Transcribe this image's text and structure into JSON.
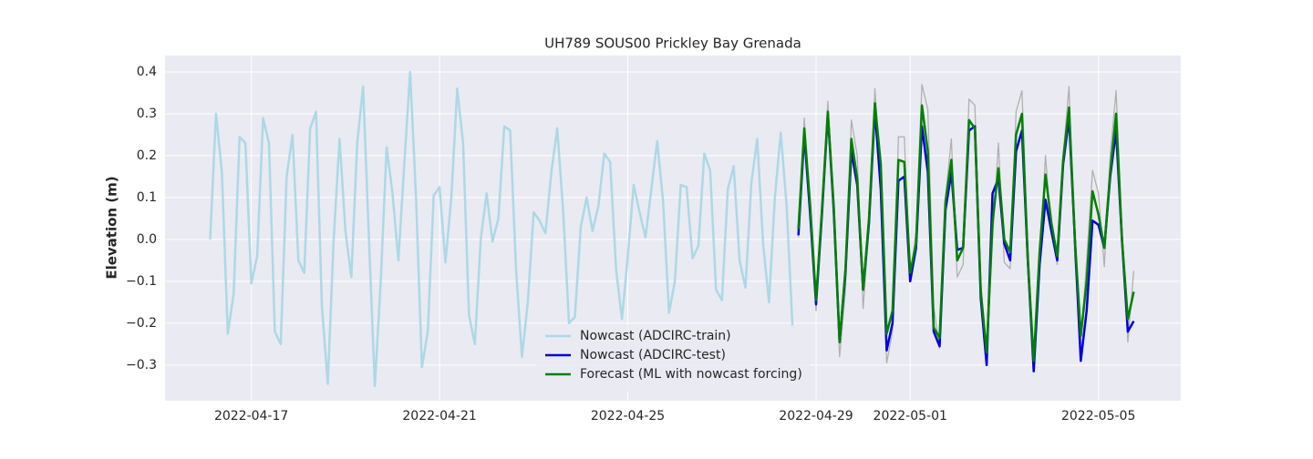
{
  "chart_data": {
    "type": "line",
    "title": "UH789 SOUS00 Prickley Bay Grenada",
    "y_label": "Elevation (m)",
    "xlim": [
      "2022-04-15 04:00",
      "2022-05-06 18:00"
    ],
    "xticks": [
      "2022-04-17",
      "2022-04-21",
      "2022-04-25",
      "2022-04-29",
      "2022-05-01",
      "2022-05-05"
    ],
    "ylim": [
      -0.385,
      0.439
    ],
    "yticks": [
      {
        "value": -0.3,
        "label": "−0.3"
      },
      {
        "value": -0.2,
        "label": "−0.2"
      },
      {
        "value": -0.1,
        "label": "−0.1"
      },
      {
        "value": 0,
        "label": "0.0"
      },
      0.1,
      0.2,
      0.3,
      0.4
    ],
    "grid": true,
    "legend": "lower center",
    "series": [
      {
        "name": "Nowcast (ADCIRC-train)",
        "color": "#add8e6",
        "x": [
          "2022-04-16 03:00",
          "2022-04-16 06:00",
          "2022-04-16 09:00",
          "2022-04-16 12:00",
          "2022-04-16 15:00",
          "2022-04-16 18:00",
          "2022-04-16 21:00",
          "2022-04-17 00:00",
          "2022-04-17 03:00",
          "2022-04-17 06:00",
          "2022-04-17 09:00",
          "2022-04-17 12:00",
          "2022-04-17 15:00",
          "2022-04-17 18:00",
          "2022-04-17 21:00",
          "2022-04-18 00:00",
          "2022-04-18 03:00",
          "2022-04-18 06:00",
          "2022-04-18 09:00",
          "2022-04-18 12:00",
          "2022-04-18 15:00",
          "2022-04-18 18:00",
          "2022-04-18 21:00",
          "2022-04-19 00:00",
          "2022-04-19 03:00",
          "2022-04-19 06:00",
          "2022-04-19 09:00",
          "2022-04-19 12:00",
          "2022-04-19 15:00",
          "2022-04-19 18:00",
          "2022-04-19 21:00",
          "2022-04-20 00:00",
          "2022-04-20 03:00",
          "2022-04-20 06:00",
          "2022-04-20 09:00",
          "2022-04-20 12:00",
          "2022-04-20 15:00",
          "2022-04-20 18:00",
          "2022-04-20 21:00",
          "2022-04-21 00:00",
          "2022-04-21 03:00",
          "2022-04-21 06:00",
          "2022-04-21 09:00",
          "2022-04-21 12:00",
          "2022-04-21 15:00",
          "2022-04-21 18:00",
          "2022-04-21 21:00",
          "2022-04-22 00:00",
          "2022-04-22 03:00",
          "2022-04-22 06:00",
          "2022-04-22 09:00",
          "2022-04-22 12:00",
          "2022-04-22 15:00",
          "2022-04-22 18:00",
          "2022-04-22 21:00",
          "2022-04-23 00:00",
          "2022-04-23 03:00",
          "2022-04-23 06:00",
          "2022-04-23 09:00",
          "2022-04-23 12:00",
          "2022-04-23 15:00",
          "2022-04-23 18:00",
          "2022-04-23 21:00",
          "2022-04-24 00:00",
          "2022-04-24 03:00",
          "2022-04-24 06:00",
          "2022-04-24 09:00",
          "2022-04-24 12:00",
          "2022-04-24 15:00",
          "2022-04-24 18:00",
          "2022-04-24 21:00",
          "2022-04-25 00:00",
          "2022-04-25 03:00",
          "2022-04-25 06:00",
          "2022-04-25 09:00",
          "2022-04-25 12:00",
          "2022-04-25 15:00",
          "2022-04-25 18:00",
          "2022-04-25 21:00",
          "2022-04-26 00:00",
          "2022-04-26 03:00",
          "2022-04-26 06:00",
          "2022-04-26 09:00",
          "2022-04-26 12:00",
          "2022-04-26 15:00",
          "2022-04-26 18:00",
          "2022-04-26 21:00",
          "2022-04-27 00:00",
          "2022-04-27 03:00",
          "2022-04-27 06:00",
          "2022-04-27 09:00",
          "2022-04-27 12:00",
          "2022-04-27 15:00",
          "2022-04-27 18:00",
          "2022-04-27 21:00",
          "2022-04-28 00:00",
          "2022-04-28 03:00",
          "2022-04-28 06:00",
          "2022-04-28 09:00",
          "2022-04-28 12:00"
        ],
        "values": [
          0.0,
          0.3,
          0.16,
          -0.225,
          -0.13,
          0.245,
          0.23,
          -0.105,
          -0.04,
          0.29,
          0.23,
          -0.22,
          -0.25,
          0.15,
          0.25,
          -0.05,
          -0.08,
          0.265,
          0.305,
          -0.16,
          -0.345,
          0.0,
          0.24,
          0.02,
          -0.09,
          0.23,
          0.365,
          0.0,
          -0.35,
          -0.1,
          0.22,
          0.11,
          -0.05,
          0.18,
          0.4,
          0.1,
          -0.305,
          -0.22,
          0.105,
          0.125,
          -0.055,
          0.1,
          0.36,
          0.23,
          -0.18,
          -0.25,
          0.0,
          0.11,
          -0.005,
          0.05,
          0.27,
          0.26,
          -0.07,
          -0.28,
          -0.15,
          0.065,
          0.045,
          0.015,
          0.16,
          0.265,
          0.07,
          -0.2,
          -0.185,
          0.03,
          0.1,
          0.02,
          0.08,
          0.205,
          0.185,
          -0.07,
          -0.19,
          -0.04,
          0.13,
          0.065,
          0.005,
          0.12,
          0.235,
          0.09,
          -0.175,
          -0.1,
          0.13,
          0.125,
          -0.045,
          -0.015,
          0.205,
          0.165,
          -0.12,
          -0.145,
          0.12,
          0.175,
          -0.05,
          -0.115,
          0.135,
          0.24,
          -0.01,
          -0.15,
          0.1,
          0.255,
          0.08,
          -0.21
        ]
      },
      {
        "color": "#b0b0b0",
        "x": [
          "2022-04-28 15:00",
          "2022-04-28 18:00",
          "2022-04-28 21:00",
          "2022-04-29 00:00",
          "2022-04-29 03:00",
          "2022-04-29 06:00",
          "2022-04-29 09:00",
          "2022-04-29 12:00",
          "2022-04-29 15:00",
          "2022-04-29 18:00",
          "2022-04-29 21:00",
          "2022-04-30 00:00",
          "2022-04-30 03:00",
          "2022-04-30 06:00",
          "2022-04-30 09:00",
          "2022-04-30 12:00",
          "2022-04-30 15:00",
          "2022-04-30 18:00",
          "2022-04-30 21:00",
          "2022-05-01 00:00",
          "2022-05-01 03:00",
          "2022-05-01 06:00",
          "2022-05-01 09:00",
          "2022-05-01 12:00",
          "2022-05-01 15:00",
          "2022-05-01 18:00",
          "2022-05-01 21:00",
          "2022-05-02 00:00",
          "2022-05-02 03:00",
          "2022-05-02 06:00",
          "2022-05-02 09:00",
          "2022-05-02 12:00",
          "2022-05-02 15:00",
          "2022-05-02 18:00",
          "2022-05-02 21:00",
          "2022-05-03 00:00",
          "2022-05-03 03:00",
          "2022-05-03 06:00",
          "2022-05-03 09:00",
          "2022-05-03 12:00",
          "2022-05-03 15:00",
          "2022-05-03 18:00",
          "2022-05-03 21:00",
          "2022-05-04 00:00",
          "2022-05-04 03:00",
          "2022-05-04 06:00",
          "2022-05-04 09:00",
          "2022-05-04 12:00",
          "2022-05-04 15:00",
          "2022-05-04 18:00",
          "2022-05-04 21:00",
          "2022-05-05 00:00",
          "2022-05-05 03:00",
          "2022-05-05 06:00",
          "2022-05-05 09:00",
          "2022-05-05 12:00",
          "2022-05-05 15:00",
          "2022-05-05 18:00"
        ],
        "values": [
          0.005,
          0.29,
          0.06,
          -0.17,
          0.05,
          0.33,
          0.05,
          -0.28,
          -0.12,
          0.285,
          0.2,
          -0.165,
          0.03,
          0.36,
          0.16,
          -0.295,
          -0.22,
          0.245,
          0.245,
          -0.09,
          0.02,
          0.37,
          0.31,
          -0.16,
          -0.26,
          0.1,
          0.24,
          -0.09,
          -0.06,
          0.335,
          0.32,
          -0.1,
          -0.28,
          0.0,
          0.23,
          -0.055,
          -0.07,
          0.305,
          0.355,
          -0.01,
          -0.29,
          -0.06,
          0.2,
          0.02,
          -0.06,
          0.2,
          0.365,
          -0.05,
          -0.25,
          -0.05,
          0.165,
          0.11,
          -0.065,
          0.2,
          0.355,
          0.03,
          -0.245,
          -0.075
        ]
      },
      {
        "name": "Nowcast (ADCIRC-test)",
        "color": "#0000dd",
        "x": [
          "2022-04-28 15:00",
          "2022-04-28 18:00",
          "2022-04-28 21:00",
          "2022-04-29 00:00",
          "2022-04-29 03:00",
          "2022-04-29 06:00",
          "2022-04-29 09:00",
          "2022-04-29 12:00",
          "2022-04-29 15:00",
          "2022-04-29 18:00",
          "2022-04-29 21:00",
          "2022-04-30 00:00",
          "2022-04-30 03:00",
          "2022-04-30 06:00",
          "2022-04-30 09:00",
          "2022-04-30 12:00",
          "2022-04-30 15:00",
          "2022-04-30 18:00",
          "2022-04-30 21:00",
          "2022-05-01 00:00",
          "2022-05-01 03:00",
          "2022-05-01 06:00",
          "2022-05-01 09:00",
          "2022-05-01 12:00",
          "2022-05-01 15:00",
          "2022-05-01 18:00",
          "2022-05-01 21:00",
          "2022-05-02 00:00",
          "2022-05-02 03:00",
          "2022-05-02 06:00",
          "2022-05-02 09:00",
          "2022-05-02 12:00",
          "2022-05-02 15:00",
          "2022-05-02 18:00",
          "2022-05-02 21:00",
          "2022-05-03 00:00",
          "2022-05-03 03:00",
          "2022-05-03 06:00",
          "2022-05-03 09:00",
          "2022-05-03 12:00",
          "2022-05-03 15:00",
          "2022-05-03 18:00",
          "2022-05-03 21:00",
          "2022-05-04 00:00",
          "2022-05-04 03:00",
          "2022-05-04 06:00",
          "2022-05-04 09:00",
          "2022-05-04 12:00",
          "2022-05-04 15:00",
          "2022-05-04 18:00",
          "2022-05-04 21:00",
          "2022-05-05 00:00",
          "2022-05-05 03:00",
          "2022-05-05 06:00",
          "2022-05-05 09:00",
          "2022-05-05 12:00",
          "2022-05-05 15:00",
          "2022-05-05 18:00"
        ],
        "values": [
          0.01,
          0.25,
          0.06,
          -0.155,
          0.06,
          0.3,
          0.07,
          -0.245,
          -0.08,
          0.21,
          0.13,
          -0.12,
          0.04,
          0.31,
          0.12,
          -0.265,
          -0.2,
          0.14,
          0.15,
          -0.1,
          -0.02,
          0.27,
          0.16,
          -0.22,
          -0.255,
          0.07,
          0.16,
          -0.025,
          -0.02,
          0.26,
          0.27,
          -0.14,
          -0.3,
          0.11,
          0.145,
          -0.01,
          -0.05,
          0.21,
          0.26,
          -0.05,
          -0.315,
          -0.06,
          0.095,
          0.02,
          -0.05,
          0.18,
          0.29,
          0.0,
          -0.29,
          -0.17,
          0.045,
          0.035,
          -0.02,
          0.15,
          0.26,
          0.0,
          -0.22,
          -0.195
        ]
      },
      {
        "name": "Forecast (ML with nowcast forcing)",
        "color": "#008000",
        "x": [
          "2022-04-28 15:00",
          "2022-04-28 18:00",
          "2022-04-28 21:00",
          "2022-04-29 00:00",
          "2022-04-29 03:00",
          "2022-04-29 06:00",
          "2022-04-29 09:00",
          "2022-04-29 12:00",
          "2022-04-29 15:00",
          "2022-04-29 18:00",
          "2022-04-29 21:00",
          "2022-04-30 00:00",
          "2022-04-30 03:00",
          "2022-04-30 06:00",
          "2022-04-30 09:00",
          "2022-04-30 12:00",
          "2022-04-30 15:00",
          "2022-04-30 18:00",
          "2022-04-30 21:00",
          "2022-05-01 00:00",
          "2022-05-01 03:00",
          "2022-05-01 06:00",
          "2022-05-01 09:00",
          "2022-05-01 12:00",
          "2022-05-01 15:00",
          "2022-05-01 18:00",
          "2022-05-01 21:00",
          "2022-05-02 00:00",
          "2022-05-02 03:00",
          "2022-05-02 06:00",
          "2022-05-02 09:00",
          "2022-05-02 12:00",
          "2022-05-02 15:00",
          "2022-05-02 18:00",
          "2022-05-02 21:00",
          "2022-05-03 00:00",
          "2022-05-03 03:00",
          "2022-05-03 06:00",
          "2022-05-03 09:00",
          "2022-05-03 12:00",
          "2022-05-03 15:00",
          "2022-05-03 18:00",
          "2022-05-03 21:00",
          "2022-05-04 00:00",
          "2022-05-04 03:00",
          "2022-05-04 06:00",
          "2022-05-04 09:00",
          "2022-05-04 12:00",
          "2022-05-04 15:00",
          "2022-05-04 18:00",
          "2022-05-04 21:00",
          "2022-05-05 00:00",
          "2022-05-05 03:00",
          "2022-05-05 06:00",
          "2022-05-05 09:00",
          "2022-05-05 12:00",
          "2022-05-05 15:00",
          "2022-05-05 18:00"
        ],
        "values": [
          0.025,
          0.265,
          0.08,
          -0.145,
          0.07,
          0.305,
          0.08,
          -0.245,
          -0.07,
          0.24,
          0.145,
          -0.12,
          0.05,
          0.325,
          0.18,
          -0.225,
          -0.17,
          0.19,
          0.185,
          -0.08,
          -0.01,
          0.32,
          0.21,
          -0.21,
          -0.235,
          0.09,
          0.19,
          -0.05,
          -0.02,
          0.285,
          0.265,
          -0.125,
          -0.27,
          0.04,
          0.17,
          0.0,
          -0.03,
          0.25,
          0.3,
          -0.05,
          -0.29,
          -0.03,
          0.155,
          0.04,
          -0.04,
          0.19,
          0.315,
          0.0,
          -0.23,
          -0.1,
          0.115,
          0.06,
          -0.02,
          0.16,
          0.3,
          0.0,
          -0.19,
          -0.125
        ]
      }
    ]
  }
}
